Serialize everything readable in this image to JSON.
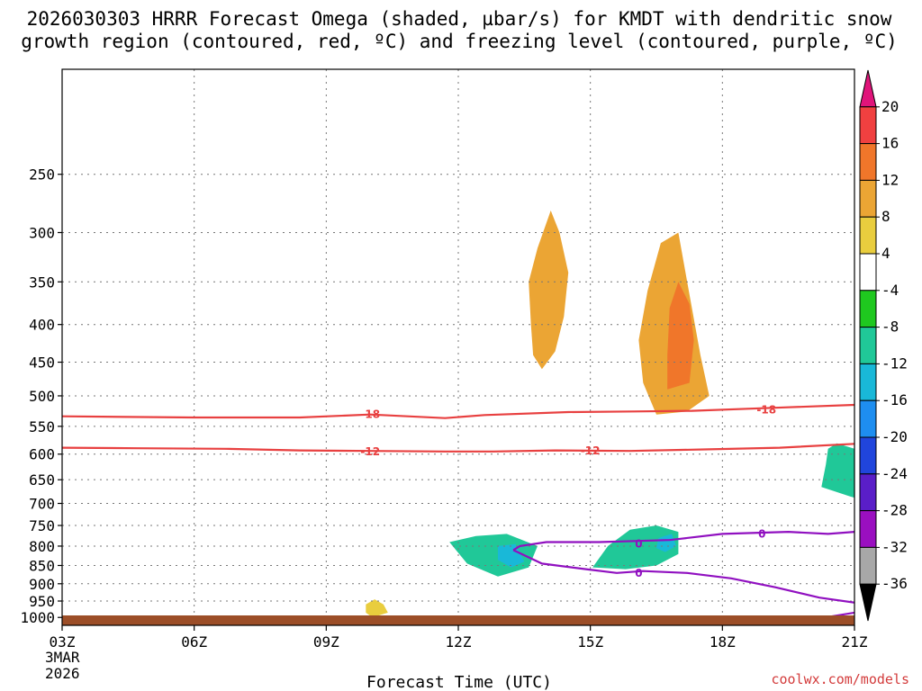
{
  "title_line1": "2026030303 HRRR Forecast Omega (shaded, µbar/s) for KMDT with dendritic snow",
  "title_line2": "growth region (contoured, red, ºC) and freezing level (contoured, purple, ºC)",
  "credit": "coolwx.com/models",
  "chart_data": {
    "type": "time-height",
    "xlabel": "Forecast Time (UTC)",
    "date_label": [
      "3MAR",
      "2026"
    ],
    "x_ticks": [
      {
        "hour": 0,
        "label": "03Z"
      },
      {
        "hour": 3,
        "label": "06Z"
      },
      {
        "hour": 6,
        "label": "09Z"
      },
      {
        "hour": 9,
        "label": "12Z"
      },
      {
        "hour": 12,
        "label": "15Z"
      },
      {
        "hour": 15,
        "label": "18Z"
      },
      {
        "hour": 18,
        "label": "21Z"
      }
    ],
    "xlim": [
      0,
      18
    ],
    "ylabel": "Pressure (mb)",
    "ylim": [
      1025,
      180
    ],
    "y_ticks": [
      250,
      300,
      350,
      400,
      450,
      500,
      550,
      600,
      650,
      700,
      750,
      800,
      850,
      900,
      950,
      1000
    ],
    "y_tick_labels": [
      "250",
      "300",
      "350",
      "400",
      "450",
      "500",
      "550",
      "600",
      "650",
      "700",
      "750",
      "800",
      "850",
      "900",
      "950",
      "1000"
    ],
    "colorbar": {
      "labels": [
        "20",
        "16",
        "12",
        "8",
        "4",
        "-4",
        "-8",
        "-12",
        "-16",
        "-20",
        "-24",
        "-28",
        "-32",
        "-36"
      ],
      "colors": [
        "#e0147a",
        "#f04040",
        "#f0762a",
        "#eba534",
        "#e9cd3e",
        "#ffffff",
        "#1fc81f",
        "#20c898",
        "#19b8d8",
        "#1e8ef0",
        "#2045dc",
        "#5a1ec8",
        "#9a0fc0",
        "#a8a8a8",
        "#000000"
      ]
    },
    "omega_regions": [
      {
        "level": "8-12",
        "color": "#eba534",
        "points": [
          [
            10.9,
            460
          ],
          [
            11.2,
            435
          ],
          [
            11.4,
            390
          ],
          [
            11.5,
            340
          ],
          [
            11.3,
            300
          ],
          [
            11.1,
            280
          ],
          [
            10.8,
            315
          ],
          [
            10.6,
            350
          ],
          [
            10.65,
            400
          ],
          [
            10.7,
            440
          ]
        ]
      },
      {
        "level": "8-12",
        "color": "#eba534",
        "points": [
          [
            13.5,
            530
          ],
          [
            14.2,
            525
          ],
          [
            14.7,
            500
          ],
          [
            14.5,
            440
          ],
          [
            14.2,
            350
          ],
          [
            14.0,
            300
          ],
          [
            13.6,
            310
          ],
          [
            13.3,
            360
          ],
          [
            13.1,
            420
          ],
          [
            13.2,
            480
          ]
        ]
      },
      {
        "level": "12-16",
        "color": "#f0762a",
        "points": [
          [
            13.75,
            490
          ],
          [
            14.25,
            480
          ],
          [
            14.35,
            420
          ],
          [
            14.25,
            375
          ],
          [
            14.0,
            350
          ],
          [
            13.8,
            380
          ],
          [
            13.75,
            440
          ]
        ]
      },
      {
        "level": "4-8",
        "color": "#e9cd3e",
        "points": [
          [
            7.05,
            1000
          ],
          [
            7.4,
            985
          ],
          [
            7.3,
            960
          ],
          [
            7.1,
            945
          ],
          [
            6.9,
            960
          ],
          [
            6.9,
            985
          ]
        ]
      },
      {
        "level": "-8 to -12",
        "color": "#20c898",
        "points": [
          [
            17.25,
            665
          ],
          [
            17.35,
            620
          ],
          [
            17.4,
            590
          ],
          [
            17.6,
            580
          ],
          [
            18.2,
            595
          ],
          [
            18.6,
            580
          ],
          [
            19.4,
            600
          ],
          [
            19.8,
            650
          ],
          [
            20.2,
            700
          ],
          [
            20.6,
            760
          ],
          [
            20.8,
            850
          ],
          [
            20.6,
            910
          ],
          [
            20.1,
            880
          ],
          [
            19.6,
            800
          ],
          [
            19.0,
            750
          ],
          [
            18.5,
            700
          ],
          [
            17.9,
            685
          ]
        ]
      },
      {
        "level": "-8 to -12",
        "color": "#20c898",
        "points": [
          [
            8.8,
            790
          ],
          [
            9.4,
            775
          ],
          [
            10.1,
            770
          ],
          [
            10.8,
            800
          ],
          [
            10.6,
            855
          ],
          [
            9.9,
            880
          ],
          [
            9.2,
            845
          ]
        ]
      },
      {
        "level": "-8 to -12",
        "color": "#20c898",
        "points": [
          [
            12.05,
            855
          ],
          [
            12.4,
            800
          ],
          [
            12.9,
            760
          ],
          [
            13.5,
            750
          ],
          [
            14.0,
            765
          ],
          [
            14.0,
            820
          ],
          [
            13.5,
            850
          ],
          [
            12.8,
            860
          ]
        ]
      },
      {
        "level": "-12 to -16",
        "color": "#19b8d8",
        "points": [
          [
            18.7,
            710
          ],
          [
            18.9,
            660
          ],
          [
            19.0,
            620
          ],
          [
            19.1,
            700
          ],
          [
            18.95,
            760
          ],
          [
            18.75,
            750
          ]
        ]
      },
      {
        "level": "-12 to -16",
        "color": "#19b8d8",
        "points": [
          [
            19.8,
            800
          ],
          [
            20.1,
            790
          ],
          [
            20.3,
            850
          ],
          [
            20.05,
            880
          ],
          [
            19.85,
            850
          ]
        ]
      },
      {
        "level": "-12 to -16",
        "color": "#19b8d8",
        "points": [
          [
            9.9,
            800
          ],
          [
            10.3,
            795
          ],
          [
            10.5,
            840
          ],
          [
            10.2,
            855
          ],
          [
            9.9,
            835
          ]
        ]
      },
      {
        "level": "-12 to -16",
        "color": "#19b8d8",
        "points": [
          [
            13.55,
            780
          ],
          [
            13.85,
            770
          ],
          [
            13.95,
            800
          ],
          [
            13.7,
            815
          ],
          [
            13.5,
            805
          ]
        ]
      }
    ],
    "freezing_level": {
      "label": "0",
      "color": "#9010c0",
      "points": [
        [
          10.25,
          810
        ],
        [
          10.4,
          800
        ],
        [
          11.0,
          790
        ],
        [
          12.2,
          790
        ],
        [
          13.8,
          785
        ],
        [
          15.0,
          770
        ],
        [
          16.5,
          765
        ],
        [
          17.4,
          770
        ],
        [
          18.0,
          765
        ],
        [
          21.0,
          760
        ]
      ],
      "extra": [
        [
          10.25,
          810
        ],
        [
          10.9,
          845
        ],
        [
          11.9,
          860
        ],
        [
          12.6,
          870
        ],
        [
          13.2,
          865
        ],
        [
          14.2,
          870
        ],
        [
          15.2,
          885
        ],
        [
          16.2,
          910
        ],
        [
          17.2,
          940
        ],
        [
          18.4,
          962
        ],
        [
          18.0,
          985
        ],
        [
          17.2,
          1003
        ],
        [
          16.5,
          1007
        ],
        [
          15.4,
          1008
        ]
      ],
      "labels_at": [
        [
          13.1,
          795
        ],
        [
          15.9,
          770
        ],
        [
          13.1,
          870
        ]
      ]
    },
    "isotherms": [
      {
        "label": "-18",
        "color": "#e84040",
        "points": [
          [
            0,
            533
          ],
          [
            3.0,
            535
          ],
          [
            5.4,
            535
          ],
          [
            7.0,
            530
          ],
          [
            8.7,
            536
          ],
          [
            9.6,
            531
          ],
          [
            11.5,
            526
          ],
          [
            13.0,
            525
          ],
          [
            14.3,
            524
          ],
          [
            16.2,
            519
          ],
          [
            18.5,
            513
          ],
          [
            21.0,
            508
          ]
        ],
        "labels_at": [
          [
            7.0,
            530
          ],
          [
            16.0,
            522
          ]
        ]
      },
      {
        "label": "-12",
        "color": "#e84040",
        "points": [
          [
            0,
            588
          ],
          [
            1.7,
            589
          ],
          [
            3.7,
            590
          ],
          [
            5.4,
            593
          ],
          [
            7.0,
            594
          ],
          [
            8.7,
            595
          ],
          [
            9.8,
            595
          ],
          [
            11.2,
            593
          ],
          [
            12.9,
            594
          ],
          [
            14.7,
            591
          ],
          [
            16.3,
            588
          ],
          [
            18.0,
            581
          ],
          [
            19.6,
            577
          ],
          [
            21.0,
            574
          ]
        ],
        "labels_at": [
          [
            7.0,
            595
          ],
          [
            12.0,
            594
          ]
        ]
      }
    ]
  }
}
